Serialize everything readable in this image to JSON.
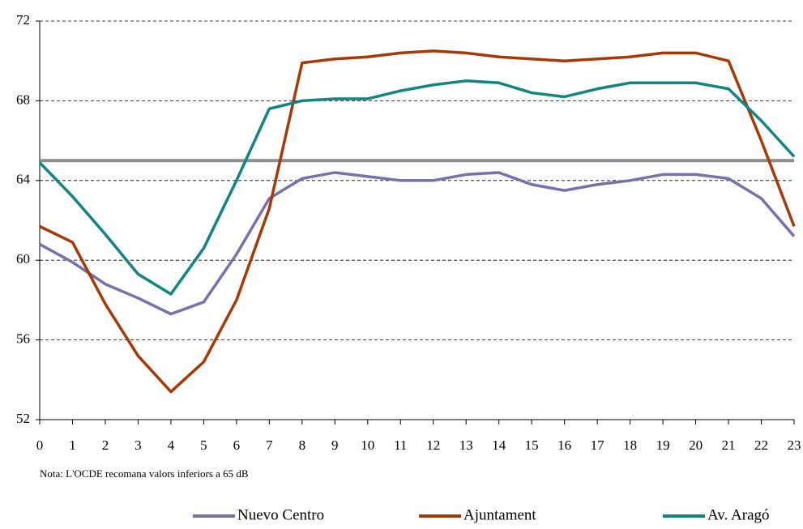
{
  "chart_data": {
    "type": "line",
    "x": [
      0,
      1,
      2,
      3,
      4,
      5,
      6,
      7,
      8,
      9,
      10,
      11,
      12,
      13,
      14,
      15,
      16,
      17,
      18,
      19,
      20,
      21,
      22,
      23
    ],
    "series": [
      {
        "name": "Nuevo Centro",
        "color": "#7472a8",
        "values": [
          60.8,
          59.9,
          58.8,
          58.1,
          57.3,
          57.9,
          60.3,
          63.1,
          64.1,
          64.4,
          64.2,
          64.0,
          64.0,
          64.3,
          64.4,
          63.8,
          63.5,
          63.8,
          64.0,
          64.3,
          64.3,
          64.1,
          63.1,
          61.2
        ]
      },
      {
        "name": "Ajuntament",
        "color": "#a53a06",
        "values": [
          61.7,
          60.9,
          57.8,
          55.2,
          53.4,
          54.9,
          58.0,
          62.6,
          69.9,
          70.1,
          70.2,
          70.4,
          70.5,
          70.4,
          70.2,
          70.1,
          70.0,
          70.1,
          70.2,
          70.4,
          70.4,
          70.0,
          66.0,
          61.7
        ]
      },
      {
        "name": "Av. Aragó",
        "color": "#128482",
        "values": [
          64.9,
          63.2,
          61.3,
          59.3,
          58.3,
          60.6,
          64.0,
          67.6,
          68.0,
          68.1,
          68.1,
          68.5,
          68.8,
          69.0,
          68.9,
          68.4,
          68.2,
          68.6,
          68.9,
          68.9,
          68.9,
          68.6,
          67.0,
          65.2
        ]
      }
    ],
    "reference_line": 65,
    "reference_color": "#8c8c8c",
    "xlim": [
      0,
      23
    ],
    "xticks": [
      0,
      1,
      2,
      3,
      4,
      5,
      6,
      7,
      8,
      9,
      10,
      11,
      12,
      13,
      14,
      15,
      16,
      17,
      18,
      19,
      20,
      21,
      22,
      23
    ],
    "ylim": [
      52,
      72
    ],
    "yticks": [
      52,
      56,
      60,
      64,
      68,
      72
    ],
    "grid": true,
    "note": "Nota: L'OCDE recomana valors inferiors a 65 dB",
    "legend": "bottom"
  }
}
